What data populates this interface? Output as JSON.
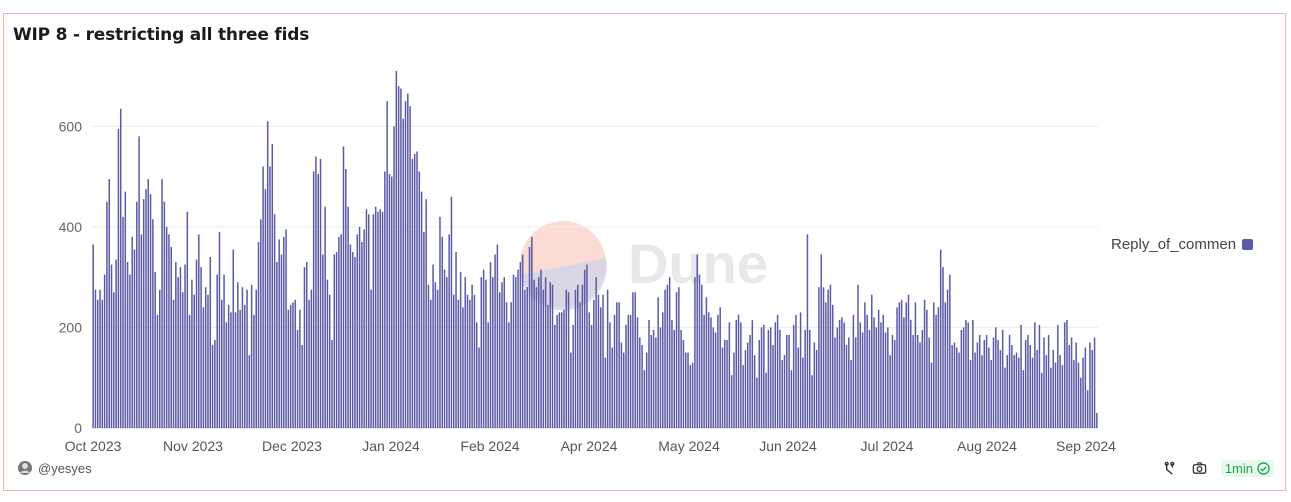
{
  "title": "WIP 8 - restricting all three fids",
  "legend": {
    "label": "Reply_of_commen",
    "color": "#5b5aa6"
  },
  "watermark": "Dune",
  "footer": {
    "user": "@yesyes",
    "refresh_label": "1min"
  },
  "chart_data": {
    "type": "bar",
    "title": "WIP 8 - restricting all three fids",
    "xlabel": "",
    "ylabel": "",
    "ylim": [
      0,
      700
    ],
    "yticks": [
      0,
      200,
      400,
      600
    ],
    "grid": true,
    "legend_position": "right",
    "xticks": [
      "Oct 2023",
      "Nov 2023",
      "Dec 2023",
      "Jan 2024",
      "Feb 2024",
      "Apr 2024",
      "May 2024",
      "Jun 2024",
      "Jul 2024",
      "Aug 2024",
      "Sep 2024"
    ],
    "series": [
      {
        "name": "Reply_of_commen",
        "values": [
          365,
          275,
          255,
          275,
          255,
          305,
          450,
          495,
          325,
          270,
          335,
          595,
          635,
          420,
          470,
          330,
          305,
          380,
          355,
          450,
          580,
          385,
          455,
          475,
          495,
          465,
          415,
          310,
          225,
          275,
          495,
          450,
          400,
          385,
          360,
          255,
          330,
          300,
          320,
          270,
          325,
          430,
          225,
          295,
          265,
          335,
          385,
          320,
          240,
          280,
          265,
          340,
          165,
          175,
          305,
          390,
          255,
          305,
          210,
          245,
          230,
          355,
          230,
          290,
          235,
          280,
          245,
          275,
          145,
          285,
          225,
          275,
          370,
          415,
          520,
          475,
          610,
          520,
          565,
          425,
          330,
          375,
          345,
          380,
          395,
          235,
          245,
          250,
          255,
          195,
          235,
          165,
          320,
          330,
          255,
          275,
          510,
          540,
          505,
          535,
          345,
          440,
          295,
          265,
          175,
          345,
          350,
          380,
          385,
          560,
          515,
          440,
          365,
          350,
          340,
          385,
          400,
          370,
          395,
          435,
          425,
          275,
          425,
          440,
          430,
          435,
          430,
          510,
          650,
          505,
          500,
          600,
          710,
          680,
          675,
          615,
          650,
          665,
          640,
          535,
          545,
          550,
          510,
          470,
          390,
          455,
          285,
          255,
          325,
          290,
          275,
          420,
          380,
          315,
          300,
          385,
          460,
          265,
          350,
          255,
          310,
          240,
          300,
          265,
          255,
          285,
          265,
          210,
          160,
          300,
          315,
          295,
          210,
          330,
          300,
          345,
          365,
          270,
          290,
          300,
          250,
          210,
          250,
          305,
          300,
          315,
          330,
          345,
          275,
          280,
          360,
          380,
          295,
          280,
          300,
          315,
          275,
          300,
          245,
          290,
          285,
          205,
          225,
          230,
          230,
          235,
          275,
          270,
          150,
          205,
          275,
          285,
          250,
          285,
          315,
          325,
          230,
          205,
          255,
          300,
          265,
          240,
          265,
          140,
          275,
          210,
          160,
          225,
          250,
          250,
          170,
          150,
          205,
          225,
          225,
          270,
          270,
          220,
          180,
          165,
          115,
          150,
          215,
          185,
          195,
          180,
          260,
          200,
          230,
          275,
          285,
          300,
          215,
          195,
          270,
          280,
          195,
          175,
          150,
          150,
          125,
          130,
          300,
          345,
          305,
          285,
          225,
          260,
          230,
          220,
          200,
          190,
          225,
          240,
          160,
          175,
          175,
          210,
          105,
          150,
          215,
          225,
          210,
          125,
          155,
          170,
          185,
          215,
          145,
          100,
          175,
          200,
          205,
          110,
          195,
          200,
          165,
          210,
          225,
          195,
          135,
          145,
          185,
          185,
          115,
          205,
          225,
          160,
          230,
          140,
          195,
          385,
          195,
          105,
          170,
          155,
          280,
          345,
          280,
          250,
          275,
          285,
          245,
          180,
          200,
          215,
          220,
          210,
          165,
          180,
          135,
          225,
          180,
          285,
          210,
          190,
          250,
          225,
          195,
          265,
          220,
          200,
          235,
          210,
          225,
          190,
          200,
          145,
          185,
          175,
          240,
          250,
          255,
          220,
          250,
          265,
          215,
          185,
          250,
          185,
          170,
          195,
          255,
          235,
          180,
          130,
          250,
          225,
          240,
          355,
          320,
          250,
          275,
          305,
          165,
          170,
          160,
          150,
          195,
          200,
          215,
          210,
          135,
          215,
          150,
          170,
          185,
          145,
          175,
          185,
          160,
          135,
          180,
          200,
          175,
          155,
          195,
          120,
          145,
          185,
          165,
          145,
          150,
          140,
          205,
          115,
          175,
          185,
          165,
          140,
          210,
          155,
          205,
          110,
          180,
          145,
          185,
          120,
          155,
          130,
          205,
          145,
          125,
          210,
          215,
          165,
          180,
          135,
          170,
          130,
          100,
          140,
          160,
          75,
          170,
          155,
          180,
          30
        ]
      }
    ]
  }
}
